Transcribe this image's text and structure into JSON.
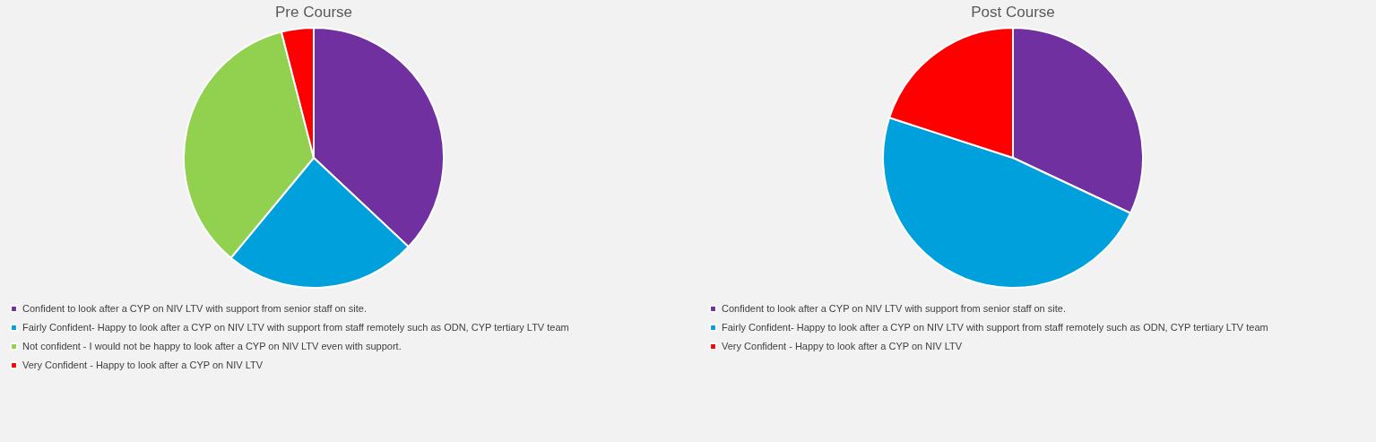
{
  "chart_data": [
    {
      "type": "pie",
      "title": "Pre Course",
      "categories": [
        "Confident to look after a CYP on NIV LTV with support from senior staff on site.",
        "Fairly Confident- Happy to look after a CYP on NIV LTV with support from staff remotely such as ODN, CYP tertiary LTV team",
        "Not confident - I would not be happy to look after a CYP on NIV LTV even with support.",
        "Very Confident - Happy to look after a CYP on NIV LTV"
      ],
      "values": [
        37,
        24,
        35,
        4
      ],
      "colors": [
        "#7030a0",
        "#00a0dc",
        "#92d050",
        "#ff0000"
      ],
      "legend": "bottom"
    },
    {
      "type": "pie",
      "title": "Post Course",
      "categories": [
        "Confident to look after a CYP on NIV LTV with support from senior staff on site.",
        "Fairly Confident- Happy to look after a CYP on NIV LTV with support from staff remotely such as ODN, CYP tertiary LTV team",
        "Very Confident - Happy to look after a CYP on NIV LTV"
      ],
      "values": [
        32,
        48,
        20
      ],
      "colors": [
        "#7030a0",
        "#00a0dc",
        "#ff0000"
      ],
      "legend": "bottom"
    }
  ]
}
